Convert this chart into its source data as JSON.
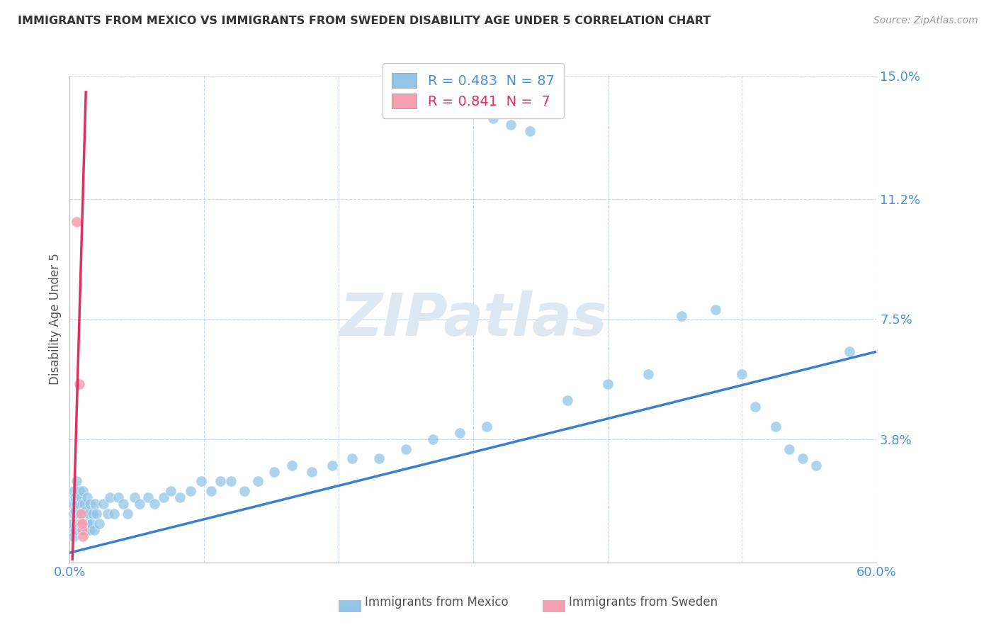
{
  "title": "IMMIGRANTS FROM MEXICO VS IMMIGRANTS FROM SWEDEN DISABILITY AGE UNDER 5 CORRELATION CHART",
  "source": "Source: ZipAtlas.com",
  "ylabel": "Disability Age Under 5",
  "xlim": [
    0.0,
    0.6
  ],
  "ylim": [
    0.0,
    0.15
  ],
  "yticks": [
    0.0,
    0.038,
    0.075,
    0.112,
    0.15
  ],
  "ytick_labels": [
    "",
    "3.8%",
    "7.5%",
    "11.2%",
    "15.0%"
  ],
  "xticks": [
    0.0,
    0.1,
    0.2,
    0.3,
    0.4,
    0.5,
    0.6
  ],
  "xtick_labels_display": [
    "0.0%",
    "",
    "",
    "",
    "",
    "",
    "60.0%"
  ],
  "mexico_color": "#92c5e8",
  "sweden_color": "#f5a0b0",
  "trendline_mexico_color": "#3a80d0",
  "trendline_sweden_color": "#e03060",
  "mexico_R": 0.483,
  "mexico_N": 87,
  "sweden_R": 0.841,
  "sweden_N": 7,
  "mexico_x": [
    0.001,
    0.002,
    0.002,
    0.003,
    0.003,
    0.003,
    0.004,
    0.004,
    0.004,
    0.005,
    0.005,
    0.005,
    0.006,
    0.006,
    0.006,
    0.007,
    0.007,
    0.007,
    0.008,
    0.008,
    0.008,
    0.009,
    0.009,
    0.01,
    0.01,
    0.01,
    0.011,
    0.011,
    0.012,
    0.012,
    0.013,
    0.013,
    0.014,
    0.015,
    0.015,
    0.016,
    0.017,
    0.018,
    0.019,
    0.02,
    0.022,
    0.025,
    0.028,
    0.03,
    0.033,
    0.036,
    0.04,
    0.043,
    0.048,
    0.052,
    0.058,
    0.063,
    0.07,
    0.075,
    0.082,
    0.09,
    0.098,
    0.105,
    0.112,
    0.12,
    0.13,
    0.14,
    0.152,
    0.165,
    0.18,
    0.195,
    0.21,
    0.23,
    0.25,
    0.27,
    0.29,
    0.31,
    0.315,
    0.328,
    0.342,
    0.37,
    0.4,
    0.43,
    0.455,
    0.48,
    0.5,
    0.51,
    0.525,
    0.535,
    0.545,
    0.555,
    0.58
  ],
  "mexico_y": [
    0.01,
    0.012,
    0.018,
    0.008,
    0.015,
    0.022,
    0.01,
    0.016,
    0.02,
    0.012,
    0.018,
    0.025,
    0.01,
    0.015,
    0.02,
    0.012,
    0.018,
    0.022,
    0.01,
    0.015,
    0.02,
    0.012,
    0.018,
    0.01,
    0.015,
    0.022,
    0.012,
    0.018,
    0.01,
    0.016,
    0.012,
    0.02,
    0.015,
    0.01,
    0.018,
    0.012,
    0.015,
    0.01,
    0.018,
    0.015,
    0.012,
    0.018,
    0.015,
    0.02,
    0.015,
    0.02,
    0.018,
    0.015,
    0.02,
    0.018,
    0.02,
    0.018,
    0.02,
    0.022,
    0.02,
    0.022,
    0.025,
    0.022,
    0.025,
    0.025,
    0.022,
    0.025,
    0.028,
    0.03,
    0.028,
    0.03,
    0.032,
    0.032,
    0.035,
    0.038,
    0.04,
    0.042,
    0.137,
    0.135,
    0.133,
    0.05,
    0.055,
    0.058,
    0.076,
    0.078,
    0.058,
    0.048,
    0.042,
    0.035,
    0.032,
    0.03,
    0.065
  ],
  "sweden_x": [
    0.005,
    0.007,
    0.008,
    0.008,
    0.009,
    0.009,
    0.01
  ],
  "sweden_y": [
    0.105,
    0.055,
    0.012,
    0.015,
    0.01,
    0.012,
    0.008
  ],
  "sweden_trend_x": [
    0.002,
    0.012
  ],
  "sweden_trend_y": [
    0.001,
    0.145
  ],
  "mexico_trend_x": [
    0.0,
    0.6
  ],
  "mexico_trend_y": [
    0.003,
    0.065
  ],
  "background_color": "#ffffff",
  "grid_color": "#c8d8e8",
  "title_color": "#333333",
  "axis_label_color": "#555555",
  "tick_label_color": "#4a90d9",
  "watermark_color": "#dde8f2",
  "legend_text_color_mexico": "#4a90d9",
  "legend_text_color_sweden": "#e03060"
}
